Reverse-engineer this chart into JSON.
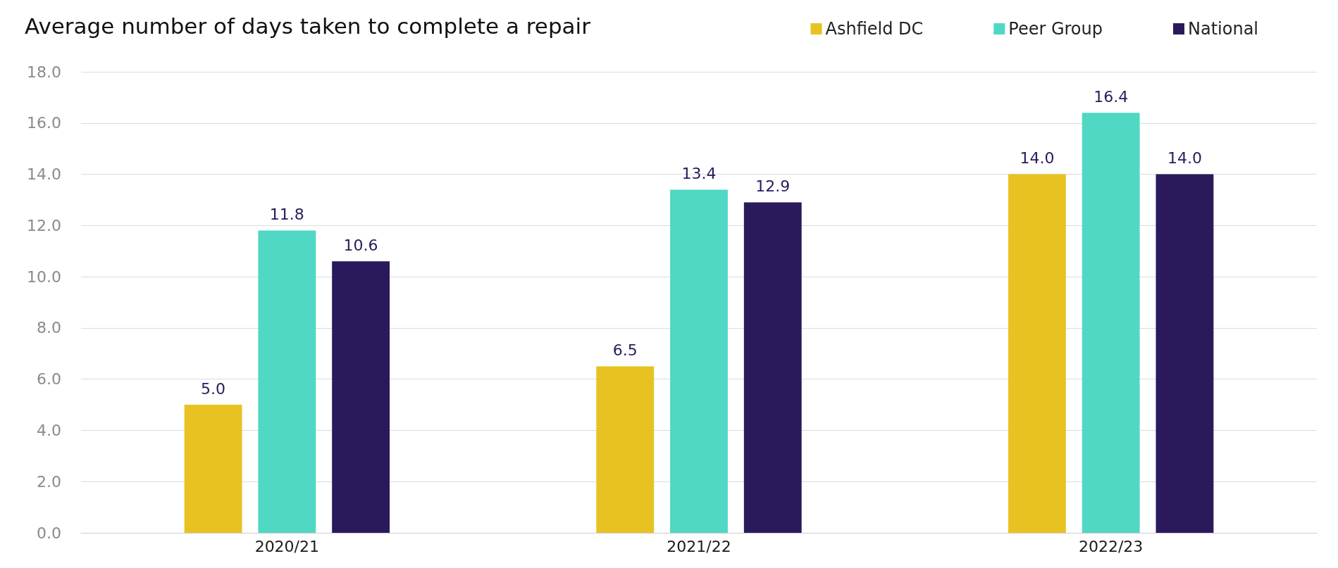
{
  "chart_data": {
    "type": "bar",
    "title": "Average number of days taken to complete a repair",
    "categories": [
      "2020/21",
      "2021/22",
      "2022/23"
    ],
    "series": [
      {
        "name": "Ashfield DC",
        "color": "#e8c220",
        "values": [
          5.0,
          6.5,
          14.0
        ],
        "value_labels": [
          "5.0",
          "6.5",
          "14.0"
        ]
      },
      {
        "name": "Peer Group",
        "color": "#50d8c4",
        "values": [
          11.8,
          13.4,
          16.4
        ],
        "value_labels": [
          "11.8",
          "13.4",
          "16.4"
        ]
      },
      {
        "name": "National",
        "color": "#2a1a5c",
        "values": [
          10.6,
          12.9,
          14.0
        ],
        "value_labels": [
          "10.6",
          "12.9",
          "14.0"
        ]
      }
    ],
    "ylim": [
      0,
      18
    ],
    "yticks": [
      {
        "value": 0,
        "label": "0.0"
      },
      {
        "value": 2,
        "label": "2.0"
      },
      {
        "value": 4,
        "label": "4.0"
      },
      {
        "value": 6,
        "label": "6.0"
      },
      {
        "value": 8,
        "label": "8.0"
      },
      {
        "value": 10,
        "label": "10.0"
      },
      {
        "value": 12,
        "label": "12.0"
      },
      {
        "value": 14,
        "label": "14.0"
      },
      {
        "value": 16,
        "label": "16.0"
      },
      {
        "value": 18,
        "label": "18.0"
      }
    ],
    "grid": "y",
    "legend": "top right"
  }
}
